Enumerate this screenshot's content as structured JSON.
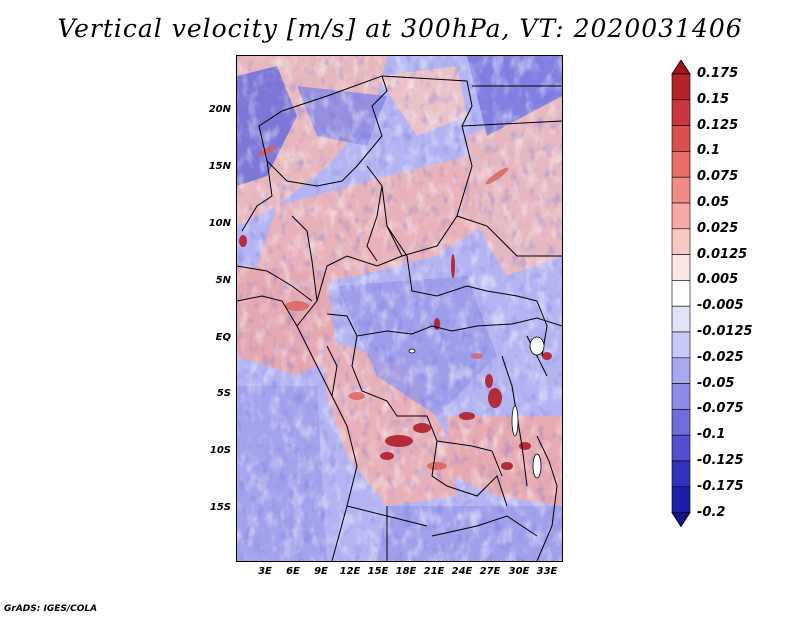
{
  "title": "Vertical velocity [m/s] at 300hPa, VT: 2020031406",
  "footer": "GrADS: IGES/COLA",
  "lat_labels": [
    "20N",
    "15N",
    "10N",
    "5N",
    "EQ",
    "5S",
    "10S",
    "15S"
  ],
  "lon_labels": [
    "3E",
    "6E",
    "9E",
    "12E",
    "15E",
    "18E",
    "21E",
    "24E",
    "27E",
    "30E",
    "33E"
  ],
  "colorbar": {
    "levels": [
      "0.175",
      "0.15",
      "0.125",
      "0.1",
      "0.075",
      "0.05",
      "0.025",
      "0.0125",
      "0.005",
      "-0.005",
      "-0.0125",
      "-0.025",
      "-0.05",
      "-0.075",
      "-0.1",
      "-0.125",
      "-0.175",
      "-0.2"
    ],
    "colors": [
      "#a0141e",
      "#b42328",
      "#c8373c",
      "#d7504b",
      "#e66e64",
      "#f08c82",
      "#f5aaa5",
      "#fac8c3",
      "#fde6e3",
      "#ffffff",
      "#e2e2fa",
      "#c8c8f5",
      "#a8a8ee",
      "#8c8ce6",
      "#6e6ede",
      "#5050d0",
      "#3232bc",
      "#1e1ea8",
      "#141492"
    ]
  },
  "colors": {
    "red_dark": "#a0141e",
    "blue_base": "#a6a6f0",
    "pink_base": "#f2b8b6"
  }
}
